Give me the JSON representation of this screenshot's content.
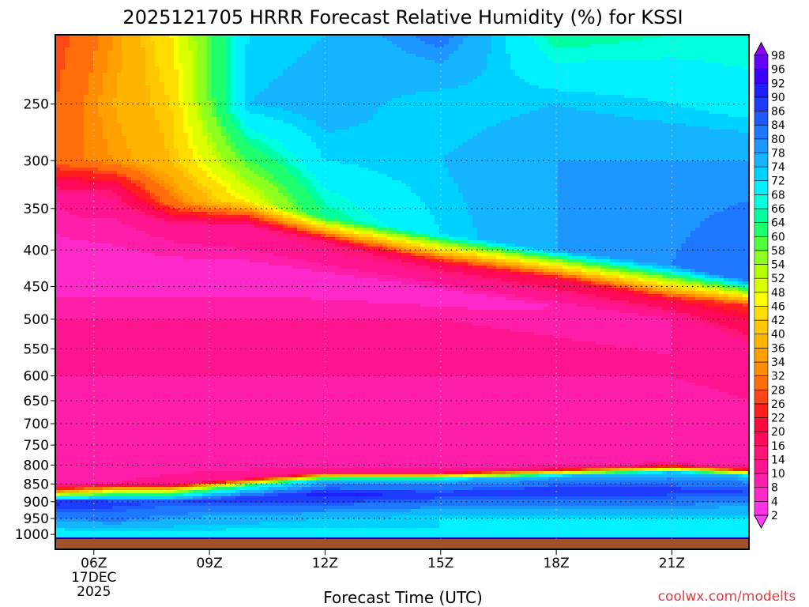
{
  "chart_data": {
    "type": "heatmap",
    "title": "2025121705 HRRR Forecast Relative Humidity (%) for KSSI",
    "xlabel": "Forecast Time (UTC)",
    "ylabel": "",
    "credit": "coolwx.com/modelts",
    "x_ticks": [
      {
        "hour": 6,
        "label": "06Z",
        "sub1": "17DEC",
        "sub2": "2025"
      },
      {
        "hour": 9,
        "label": "09Z"
      },
      {
        "hour": 12,
        "label": "12Z"
      },
      {
        "hour": 15,
        "label": "15Z"
      },
      {
        "hour": 18,
        "label": "18Z"
      },
      {
        "hour": 21,
        "label": "21Z"
      }
    ],
    "xlim": [
      5,
      23
    ],
    "y_ticks": [
      250,
      300,
      350,
      400,
      450,
      500,
      550,
      600,
      650,
      700,
      750,
      800,
      850,
      900,
      950,
      1000
    ],
    "ylim_hPa": [
      1015,
      200
    ],
    "y_scale": "log",
    "colorbar_levels": [
      2,
      4,
      8,
      10,
      14,
      16,
      20,
      22,
      26,
      28,
      32,
      34,
      36,
      40,
      42,
      46,
      48,
      52,
      54,
      58,
      60,
      64,
      66,
      68,
      72,
      74,
      78,
      80,
      84,
      86,
      90,
      92,
      96,
      98
    ],
    "colorbar_colors": [
      "#ff3cff",
      "#ff32e6",
      "#ff28c8",
      "#ff1eaa",
      "#ff1490",
      "#ff1478",
      "#ff0a5a",
      "#ff0a3c",
      "#ff1e1e",
      "#ff4614",
      "#ff6e0a",
      "#ff8c00",
      "#ffa000",
      "#ffb400",
      "#ffc800",
      "#ffdc00",
      "#ffff00",
      "#dcff00",
      "#b4ff00",
      "#8cff1e",
      "#50ff3c",
      "#1eff6e",
      "#00ffa0",
      "#00ffdc",
      "#00f0ff",
      "#00d2ff",
      "#14b4ff",
      "#1e96ff",
      "#1e78ff",
      "#1e5aff",
      "#1e3cff",
      "#1e1eff",
      "#3c00ff",
      "#6400ff",
      "#8c00ff"
    ],
    "rh_profiles": [
      {
        "hour": 5,
        "pressure": [
          200,
          250,
          300,
          340,
          380,
          430,
          500,
          600,
          700,
          800,
          850,
          870,
          900,
          950,
          1000
        ],
        "rh": [
          26,
          28,
          30,
          10,
          8,
          6,
          10,
          10,
          8,
          8,
          10,
          30,
          92,
          80,
          68
        ]
      },
      {
        "hour": 6.5,
        "pressure": [
          200,
          250,
          300,
          330,
          360,
          430,
          500,
          600,
          700,
          800,
          850,
          865,
          900,
          950,
          1000
        ],
        "rh": [
          34,
          36,
          34,
          16,
          10,
          6,
          10,
          10,
          8,
          8,
          10,
          40,
          88,
          82,
          70
        ]
      },
      {
        "hour": 8,
        "pressure": [
          200,
          250,
          300,
          345,
          370,
          430,
          500,
          600,
          700,
          800,
          850,
          870,
          900,
          950,
          1000
        ],
        "rh": [
          46,
          42,
          40,
          30,
          12,
          6,
          10,
          10,
          8,
          8,
          12,
          50,
          86,
          78,
          70
        ]
      },
      {
        "hour": 10,
        "pressure": [
          200,
          250,
          300,
          340,
          370,
          430,
          500,
          600,
          700,
          800,
          835,
          855,
          890,
          950,
          1000
        ],
        "rh": [
          72,
          74,
          60,
          48,
          14,
          6,
          10,
          10,
          8,
          8,
          14,
          64,
          88,
          76,
          70
        ]
      },
      {
        "hour": 12,
        "pressure": [
          200,
          250,
          300,
          360,
          390,
          440,
          500,
          600,
          700,
          800,
          820,
          840,
          880,
          950,
          1000
        ],
        "rh": [
          74,
          76,
          72,
          64,
          16,
          6,
          10,
          10,
          8,
          8,
          16,
          74,
          92,
          74,
          70
        ]
      },
      {
        "hour": 15,
        "pressure": [
          200,
          250,
          300,
          380,
          420,
          460,
          500,
          600,
          700,
          800,
          820,
          840,
          880,
          950,
          1000
        ],
        "rh": [
          82,
          72,
          74,
          72,
          18,
          6,
          10,
          10,
          8,
          8,
          16,
          76,
          88,
          72,
          72
        ]
      },
      {
        "hour": 18,
        "pressure": [
          200,
          250,
          300,
          400,
          440,
          480,
          530,
          600,
          700,
          800,
          810,
          830,
          870,
          950,
          1000
        ],
        "rh": [
          64,
          74,
          78,
          78,
          20,
          8,
          10,
          10,
          8,
          8,
          16,
          76,
          90,
          72,
          70
        ]
      },
      {
        "hour": 21,
        "pressure": [
          200,
          250,
          300,
          420,
          470,
          500,
          560,
          600,
          700,
          790,
          800,
          820,
          870,
          950,
          1000
        ],
        "rh": [
          66,
          72,
          78,
          80,
          22,
          10,
          10,
          10,
          8,
          8,
          16,
          76,
          88,
          72,
          70
        ]
      },
      {
        "hour": 23,
        "pressure": [
          200,
          250,
          300,
          440,
          480,
          540,
          580,
          650,
          720,
          800,
          810,
          830,
          870,
          950,
          1000
        ],
        "rh": [
          66,
          70,
          78,
          84,
          24,
          14,
          10,
          10,
          8,
          8,
          16,
          76,
          86,
          72,
          70
        ]
      }
    ]
  }
}
